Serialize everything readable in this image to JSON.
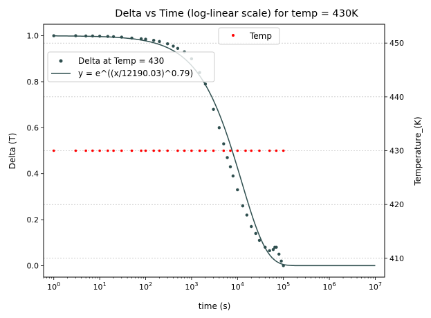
{
  "chart_data": {
    "type": "scatter",
    "title": "Delta vs Time (log-linear scale) for temp = 430K",
    "xlabel": "time (s)",
    "ylabel": "Delta (T)",
    "y2label": "Temperature_(K)",
    "x_scale": "log",
    "xlim": [
      0.6,
      16000000
    ],
    "ylim": [
      -0.05,
      1.05
    ],
    "y2lim": [
      406.5,
      453.5
    ],
    "x_ticks": [
      {
        "base": "10",
        "exp": "0",
        "value": 1
      },
      {
        "base": "10",
        "exp": "1",
        "value": 10
      },
      {
        "base": "10",
        "exp": "2",
        "value": 100
      },
      {
        "base": "10",
        "exp": "3",
        "value": 1000
      },
      {
        "base": "10",
        "exp": "4",
        "value": 10000
      },
      {
        "base": "10",
        "exp": "5",
        "value": 100000
      },
      {
        "base": "10",
        "exp": "6",
        "value": 1000000
      },
      {
        "base": "10",
        "exp": "7",
        "value": 10000000
      }
    ],
    "y_ticks": [
      "0.0",
      "0.2",
      "0.4",
      "0.6",
      "0.8",
      "1.0"
    ],
    "y_tick_values": [
      0.0,
      0.2,
      0.4,
      0.6,
      0.8,
      1.0
    ],
    "y2_ticks": [
      "410",
      "420",
      "430",
      "440",
      "450"
    ],
    "y2_tick_values": [
      410,
      420,
      430,
      440,
      450
    ],
    "grid": "horizontal dashed on right axis",
    "series": [
      {
        "name": "Delta at Temp = 430",
        "kind": "scatter",
        "axis": "left",
        "color": "#2f4f4f",
        "points": [
          [
            1,
            1.0
          ],
          [
            3,
            1.0
          ],
          [
            5,
            0.999
          ],
          [
            7,
            0.999
          ],
          [
            10,
            0.998
          ],
          [
            15,
            0.997
          ],
          [
            20,
            0.996
          ],
          [
            30,
            0.994
          ],
          [
            50,
            0.99
          ],
          [
            80,
            0.987
          ],
          [
            100,
            0.985
          ],
          [
            150,
            0.98
          ],
          [
            200,
            0.975
          ],
          [
            300,
            0.965
          ],
          [
            400,
            0.955
          ],
          [
            500,
            0.945
          ],
          [
            700,
            0.93
          ],
          [
            1000,
            0.9
          ],
          [
            1500,
            0.84
          ],
          [
            2000,
            0.79
          ],
          [
            3000,
            0.68
          ],
          [
            4000,
            0.6
          ],
          [
            5000,
            0.53
          ],
          [
            6000,
            0.47
          ],
          [
            7000,
            0.43
          ],
          [
            8000,
            0.39
          ],
          [
            10000,
            0.33
          ],
          [
            13000,
            0.26
          ],
          [
            16000,
            0.22
          ],
          [
            20000,
            0.17
          ],
          [
            25000,
            0.14
          ],
          [
            30000,
            0.11
          ],
          [
            40000,
            0.08
          ],
          [
            50000,
            0.065
          ],
          [
            60000,
            0.07
          ],
          [
            65000,
            0.08
          ],
          [
            70000,
            0.08
          ],
          [
            80000,
            0.05
          ],
          [
            90000,
            0.02
          ],
          [
            100000,
            0.0
          ]
        ]
      },
      {
        "name": "y = e^((x/12190.03)^0.79)",
        "kind": "line",
        "axis": "left",
        "color": "#2f4f4f",
        "tau": 12190.03,
        "beta": 0.79,
        "x_range": [
          1,
          10000000
        ]
      },
      {
        "name": "Temp",
        "kind": "scatter",
        "axis": "right",
        "color": "#ff0000",
        "constant_y": 430,
        "x_values": [
          1,
          3,
          5,
          7,
          10,
          15,
          20,
          30,
          50,
          80,
          100,
          150,
          200,
          300,
          500,
          700,
          1000,
          1500,
          2000,
          3000,
          5000,
          7000,
          10000,
          15000,
          20000,
          30000,
          50000,
          70000,
          100000
        ]
      }
    ],
    "legends": [
      {
        "placement": "upper-left",
        "entries": [
          "Delta at Temp = 430",
          "y = e^((x/12190.03)^0.79)"
        ]
      },
      {
        "placement": "upper-center",
        "entries": [
          "Temp"
        ]
      }
    ]
  }
}
